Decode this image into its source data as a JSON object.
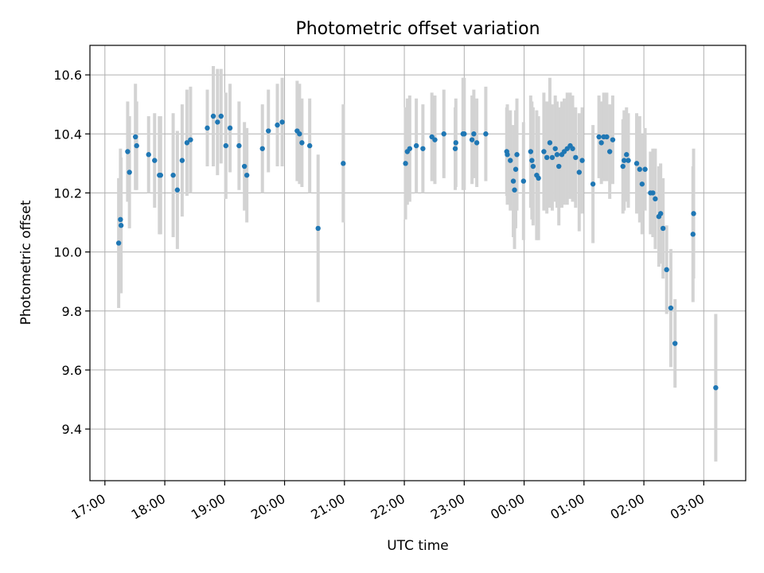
{
  "chart_data": {
    "type": "scatter",
    "title": "Photometric offset variation",
    "xlabel": "UTC time",
    "ylabel": "Photometric offset",
    "x_unit": "hours after 17:00 UTC",
    "xlim": [
      -0.25,
      10.7
    ],
    "ylim": [
      9.225,
      10.7
    ],
    "x_ticks": [
      {
        "value": 0,
        "label": "17:00"
      },
      {
        "value": 1,
        "label": "18:00"
      },
      {
        "value": 2,
        "label": "19:00"
      },
      {
        "value": 3,
        "label": "20:00"
      },
      {
        "value": 4,
        "label": "21:00"
      },
      {
        "value": 5,
        "label": "22:00"
      },
      {
        "value": 6,
        "label": "23:00"
      },
      {
        "value": 7,
        "label": "00:00"
      },
      {
        "value": 8,
        "label": "01:00"
      },
      {
        "value": 9,
        "label": "02:00"
      },
      {
        "value": 10,
        "label": "03:00"
      }
    ],
    "y_ticks": [
      {
        "value": 9.4,
        "label": "9.4"
      },
      {
        "value": 9.6,
        "label": "9.6"
      },
      {
        "value": 9.8,
        "label": "9.8"
      },
      {
        "value": 10.0,
        "label": "10.0"
      },
      {
        "value": 10.2,
        "label": "10.2"
      },
      {
        "value": 10.4,
        "label": "10.4"
      },
      {
        "value": 10.6,
        "label": "10.6"
      }
    ],
    "grid": true,
    "colors": {
      "points": "#1f77b4",
      "error_bars": "#d3d3d3"
    },
    "points": [
      {
        "x": 0.23,
        "y": 10.03,
        "err": 0.22
      },
      {
        "x": 0.26,
        "y": 10.11,
        "err": 0.24
      },
      {
        "x": 0.27,
        "y": 10.09,
        "err": 0.23
      },
      {
        "x": 0.38,
        "y": 10.34,
        "err": 0.17
      },
      {
        "x": 0.41,
        "y": 10.27,
        "err": 0.19
      },
      {
        "x": 0.51,
        "y": 10.39,
        "err": 0.18
      },
      {
        "x": 0.53,
        "y": 10.36,
        "err": 0.15
      },
      {
        "x": 0.73,
        "y": 10.33,
        "err": 0.13
      },
      {
        "x": 0.83,
        "y": 10.31,
        "err": 0.16
      },
      {
        "x": 0.91,
        "y": 10.26,
        "err": 0.2
      },
      {
        "x": 0.93,
        "y": 10.26,
        "err": 0.2
      },
      {
        "x": 1.14,
        "y": 10.26,
        "err": 0.21
      },
      {
        "x": 1.21,
        "y": 10.21,
        "err": 0.2
      },
      {
        "x": 1.29,
        "y": 10.31,
        "err": 0.19
      },
      {
        "x": 1.37,
        "y": 10.37,
        "err": 0.18
      },
      {
        "x": 1.43,
        "y": 10.38,
        "err": 0.18
      },
      {
        "x": 1.71,
        "y": 10.42,
        "err": 0.13
      },
      {
        "x": 1.81,
        "y": 10.46,
        "err": 0.17
      },
      {
        "x": 1.88,
        "y": 10.44,
        "err": 0.18
      },
      {
        "x": 1.94,
        "y": 10.46,
        "err": 0.16
      },
      {
        "x": 2.02,
        "y": 10.36,
        "err": 0.18
      },
      {
        "x": 2.09,
        "y": 10.42,
        "err": 0.15
      },
      {
        "x": 2.24,
        "y": 10.36,
        "err": 0.15
      },
      {
        "x": 2.33,
        "y": 10.29,
        "err": 0.15
      },
      {
        "x": 2.37,
        "y": 10.26,
        "err": 0.16
      },
      {
        "x": 2.63,
        "y": 10.35,
        "err": 0.15
      },
      {
        "x": 2.73,
        "y": 10.41,
        "err": 0.14
      },
      {
        "x": 2.88,
        "y": 10.43,
        "err": 0.14
      },
      {
        "x": 2.96,
        "y": 10.44,
        "err": 0.15
      },
      {
        "x": 3.21,
        "y": 10.41,
        "err": 0.17
      },
      {
        "x": 3.25,
        "y": 10.4,
        "err": 0.17
      },
      {
        "x": 3.29,
        "y": 10.37,
        "err": 0.15
      },
      {
        "x": 3.42,
        "y": 10.36,
        "err": 0.16
      },
      {
        "x": 3.56,
        "y": 10.08,
        "err": 0.25
      },
      {
        "x": 3.98,
        "y": 10.3,
        "err": 0.2
      },
      {
        "x": 5.02,
        "y": 10.3,
        "err": 0.19
      },
      {
        "x": 5.05,
        "y": 10.34,
        "err": 0.18
      },
      {
        "x": 5.09,
        "y": 10.35,
        "err": 0.18
      },
      {
        "x": 5.2,
        "y": 10.36,
        "err": 0.16
      },
      {
        "x": 5.31,
        "y": 10.35,
        "err": 0.15
      },
      {
        "x": 5.46,
        "y": 10.39,
        "err": 0.15
      },
      {
        "x": 5.51,
        "y": 10.38,
        "err": 0.15
      },
      {
        "x": 5.66,
        "y": 10.4,
        "err": 0.15
      },
      {
        "x": 5.85,
        "y": 10.35,
        "err": 0.14
      },
      {
        "x": 5.86,
        "y": 10.37,
        "err": 0.15
      },
      {
        "x": 5.98,
        "y": 10.4,
        "err": 0.19
      },
      {
        "x": 6.0,
        "y": 10.4,
        "err": 0.19
      },
      {
        "x": 6.13,
        "y": 10.38,
        "err": 0.15
      },
      {
        "x": 6.16,
        "y": 10.4,
        "err": 0.15
      },
      {
        "x": 6.21,
        "y": 10.37,
        "err": 0.15
      },
      {
        "x": 6.36,
        "y": 10.4,
        "err": 0.16
      },
      {
        "x": 6.71,
        "y": 10.34,
        "err": 0.15
      },
      {
        "x": 6.72,
        "y": 10.33,
        "err": 0.17
      },
      {
        "x": 6.77,
        "y": 10.31,
        "err": 0.17
      },
      {
        "x": 6.82,
        "y": 10.24,
        "err": 0.19
      },
      {
        "x": 6.84,
        "y": 10.21,
        "err": 0.2
      },
      {
        "x": 6.86,
        "y": 10.28,
        "err": 0.2
      },
      {
        "x": 6.88,
        "y": 10.33,
        "err": 0.19
      },
      {
        "x": 6.99,
        "y": 10.24,
        "err": 0.2
      },
      {
        "x": 7.11,
        "y": 10.34,
        "err": 0.19
      },
      {
        "x": 7.13,
        "y": 10.31,
        "err": 0.2
      },
      {
        "x": 7.15,
        "y": 10.29,
        "err": 0.2
      },
      {
        "x": 7.21,
        "y": 10.26,
        "err": 0.22
      },
      {
        "x": 7.24,
        "y": 10.25,
        "err": 0.21
      },
      {
        "x": 7.33,
        "y": 10.34,
        "err": 0.2
      },
      {
        "x": 7.38,
        "y": 10.32,
        "err": 0.19
      },
      {
        "x": 7.43,
        "y": 10.37,
        "err": 0.22
      },
      {
        "x": 7.47,
        "y": 10.32,
        "err": 0.18
      },
      {
        "x": 7.52,
        "y": 10.35,
        "err": 0.18
      },
      {
        "x": 7.55,
        "y": 10.33,
        "err": 0.18
      },
      {
        "x": 7.58,
        "y": 10.29,
        "err": 0.2
      },
      {
        "x": 7.63,
        "y": 10.33,
        "err": 0.18
      },
      {
        "x": 7.67,
        "y": 10.34,
        "err": 0.18
      },
      {
        "x": 7.72,
        "y": 10.35,
        "err": 0.19
      },
      {
        "x": 7.77,
        "y": 10.36,
        "err": 0.18
      },
      {
        "x": 7.81,
        "y": 10.35,
        "err": 0.18
      },
      {
        "x": 7.86,
        "y": 10.32,
        "err": 0.17
      },
      {
        "x": 7.92,
        "y": 10.27,
        "err": 0.2
      },
      {
        "x": 7.97,
        "y": 10.31,
        "err": 0.18
      },
      {
        "x": 8.15,
        "y": 10.23,
        "err": 0.2
      },
      {
        "x": 8.25,
        "y": 10.39,
        "err": 0.14
      },
      {
        "x": 8.29,
        "y": 10.37,
        "err": 0.14
      },
      {
        "x": 8.33,
        "y": 10.39,
        "err": 0.15
      },
      {
        "x": 8.38,
        "y": 10.39,
        "err": 0.15
      },
      {
        "x": 8.43,
        "y": 10.34,
        "err": 0.16
      },
      {
        "x": 8.48,
        "y": 10.38,
        "err": 0.15
      },
      {
        "x": 8.65,
        "y": 10.29,
        "err": 0.16
      },
      {
        "x": 8.67,
        "y": 10.31,
        "err": 0.17
      },
      {
        "x": 8.71,
        "y": 10.33,
        "err": 0.16
      },
      {
        "x": 8.74,
        "y": 10.31,
        "err": 0.16
      },
      {
        "x": 8.88,
        "y": 10.3,
        "err": 0.17
      },
      {
        "x": 8.93,
        "y": 10.28,
        "err": 0.18
      },
      {
        "x": 8.97,
        "y": 10.23,
        "err": 0.17
      },
      {
        "x": 9.02,
        "y": 10.28,
        "err": 0.14
      },
      {
        "x": 9.11,
        "y": 10.2,
        "err": 0.14
      },
      {
        "x": 9.15,
        "y": 10.2,
        "err": 0.15
      },
      {
        "x": 9.19,
        "y": 10.18,
        "err": 0.17
      },
      {
        "x": 9.25,
        "y": 10.12,
        "err": 0.17
      },
      {
        "x": 9.28,
        "y": 10.13,
        "err": 0.17
      },
      {
        "x": 9.32,
        "y": 10.08,
        "err": 0.17
      },
      {
        "x": 9.38,
        "y": 9.94,
        "err": 0.15
      },
      {
        "x": 9.45,
        "y": 9.81,
        "err": 0.2
      },
      {
        "x": 9.52,
        "y": 9.69,
        "err": 0.15
      },
      {
        "x": 9.82,
        "y": 10.06,
        "err": 0.23
      },
      {
        "x": 9.83,
        "y": 10.13,
        "err": 0.22
      },
      {
        "x": 10.2,
        "y": 9.54,
        "err": 0.25
      }
    ]
  }
}
